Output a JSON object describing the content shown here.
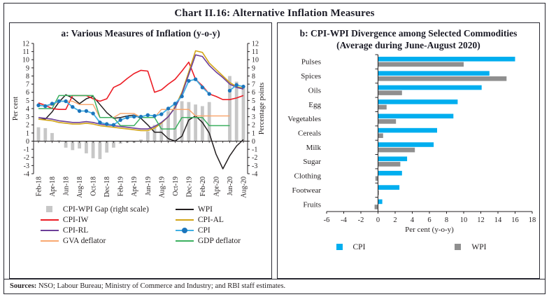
{
  "title": "Chart II.16: Alternative Inflation Measures",
  "sources_label": "Sources:",
  "sources_text": " NSO; Labour Bureau; Ministry of Commerce and Industry; and RBI staff estimates.",
  "colors": {
    "frame": "#26262e",
    "axis": "#231f20",
    "gap_bar": "#c7c7c7",
    "wpi_line": "#231f20",
    "cpi_iw": "#ec1c24",
    "cpi_al": "#d2a517",
    "cpi_rl": "#6d3f99",
    "cpi": "#41b0e4",
    "cpi_marker": "#1c75bc",
    "gva": "#f9a870",
    "gdp": "#3cb060",
    "cpi_b": "#00aeef",
    "wpi_b": "#8f8f8f"
  },
  "chart_data": [
    {
      "type": "line",
      "title": "a: Various Measures of Inflation (y-o-y)",
      "ylabel_left": "Per cent",
      "ylabel_right": "Percentage points",
      "ylim": [
        -4,
        12
      ],
      "ytick_step": 1,
      "x": [
        "Feb-18",
        "Mar-18",
        "Apr-18",
        "May-18",
        "Jun-18",
        "Jul-18",
        "Aug-18",
        "Sep-18",
        "Oct-18",
        "Nov-18",
        "Dec-18",
        "Jan-19",
        "Feb-19",
        "Mar-19",
        "Apr-19",
        "May-19",
        "Jun-19",
        "Jul-19",
        "Aug-19",
        "Sep-19",
        "Oct-19",
        "Nov-19",
        "Dec-19",
        "Jan-20",
        "Feb-20",
        "Mar-20",
        "Apr-20",
        "May-20",
        "Jun-20",
        "Jul-20",
        "Aug-20"
      ],
      "xtick_every": 2,
      "bar_series": {
        "name": "CPI-WPI Gap (right scale)",
        "axis": "right",
        "color": "#c7c7c7",
        "values": [
          1.7,
          1.6,
          1.0,
          0.1,
          -0.8,
          -1.1,
          -0.9,
          -1.5,
          -2.1,
          -2.2,
          -1.4,
          -0.8,
          -0.3,
          -0.2,
          -0.2,
          0.2,
          1.2,
          2.0,
          2.2,
          3.7,
          4.6,
          4.9,
          4.8,
          4.5,
          4.3,
          4.8,
          null,
          null,
          8.0,
          7.3,
          6.5
        ]
      },
      "series": [
        {
          "name": "WPI",
          "color": "#231f20",
          "width": 1.5,
          "values": [
            2.7,
            2.7,
            3.6,
            4.8,
            5.7,
            5.3,
            4.6,
            5.2,
            5.5,
            4.5,
            3.5,
            2.8,
            2.9,
            3.1,
            3.2,
            2.8,
            2.0,
            1.1,
            1.1,
            0.3,
            0.0,
            0.6,
            2.6,
            3.1,
            2.3,
            1.0,
            -1.6,
            -3.4,
            -1.8,
            -0.6,
            0.2
          ]
        },
        {
          "name": "CPI-IW",
          "color": "#ec1c24",
          "width": 1.6,
          "values": [
            4.7,
            4.4,
            4.0,
            3.9,
            3.9,
            5.6,
            5.6,
            5.6,
            5.2,
            4.9,
            5.2,
            6.6,
            7.0,
            7.7,
            8.3,
            8.7,
            8.6,
            6.0,
            6.3,
            7.0,
            7.6,
            8.6,
            9.7,
            7.6,
            6.8,
            5.8,
            5.5,
            5.1,
            5.1,
            5.3,
            5.6
          ]
        },
        {
          "name": "CPI-AL",
          "color": "#d2a517",
          "width": 1.6,
          "values": [
            2.7,
            2.6,
            2.5,
            2.3,
            2.2,
            2.1,
            2.1,
            2.2,
            2.1,
            1.9,
            1.8,
            1.7,
            1.6,
            1.5,
            1.4,
            1.3,
            1.3,
            1.6,
            2.2,
            3.0,
            4.2,
            6.0,
            8.5,
            11.1,
            10.9,
            9.6,
            8.8,
            8.0,
            7.2,
            6.7,
            6.5
          ]
        },
        {
          "name": "CPI-RL",
          "color": "#6d3f99",
          "width": 1.6,
          "values": [
            2.9,
            2.8,
            2.7,
            2.5,
            2.4,
            2.3,
            2.3,
            2.4,
            2.3,
            2.1,
            2.0,
            1.9,
            1.8,
            1.7,
            1.6,
            1.5,
            1.5,
            1.8,
            2.3,
            3.0,
            4.1,
            5.8,
            8.2,
            10.6,
            10.4,
            9.3,
            8.5,
            7.8,
            7.0,
            6.6,
            6.4
          ]
        },
        {
          "name": "GVA deflator",
          "color": "#f9a870",
          "width": 1.5,
          "values": [
            4.4,
            4.4,
            4.4,
            4.9,
            4.9,
            4.9,
            4.5,
            4.5,
            4.5,
            2.9,
            2.9,
            2.9,
            3.4,
            3.4,
            3.4,
            2.9,
            2.9,
            2.9,
            3.9,
            3.9,
            3.9,
            3.9,
            3.9,
            3.1,
            3.1,
            3.1,
            3.1,
            3.1,
            3.1,
            null,
            null
          ]
        },
        {
          "name": "GDP deflator",
          "color": "#3cb060",
          "width": 1.5,
          "values": [
            4.0,
            4.0,
            4.0,
            5.6,
            5.6,
            5.6,
            5.6,
            5.6,
            5.6,
            2.9,
            2.9,
            2.9,
            1.9,
            1.9,
            1.9,
            2.9,
            2.9,
            2.9,
            1.5,
            1.5,
            1.5,
            2.9,
            2.9,
            2.9,
            2.9,
            1.9,
            1.9,
            1.9,
            1.9,
            null,
            null
          ]
        },
        {
          "name": "CPI",
          "color": "#41b0e4",
          "width": 1.8,
          "marker": true,
          "marker_color": "#1c75bc",
          "values": [
            4.4,
            4.3,
            4.6,
            4.9,
            4.9,
            4.2,
            3.7,
            3.7,
            3.4,
            2.3,
            2.1,
            2.0,
            2.6,
            2.9,
            3.0,
            3.0,
            3.2,
            3.1,
            3.3,
            4.0,
            4.6,
            5.5,
            7.4,
            7.6,
            6.6,
            5.8,
            null,
            null,
            6.2,
            6.9,
            6.7
          ]
        }
      ],
      "legend": [
        {
          "label": "CPI-WPI Gap (right scale)",
          "swatch": "square",
          "color": "#c7c7c7"
        },
        {
          "label": "WPI",
          "swatch": "line",
          "color": "#231f20"
        },
        {
          "label": "CPI-IW",
          "swatch": "line",
          "color": "#ec1c24"
        },
        {
          "label": "CPI-AL",
          "swatch": "line",
          "color": "#d2a517"
        },
        {
          "label": "CPI-RL",
          "swatch": "line",
          "color": "#6d3f99"
        },
        {
          "label": "CPI",
          "swatch": "line-dot",
          "color": "#41b0e4",
          "dot": "#1c75bc"
        },
        {
          "label": "GVA deflator",
          "swatch": "line",
          "color": "#f9a870"
        },
        {
          "label": "GDP deflator",
          "swatch": "line",
          "color": "#3cb060"
        }
      ]
    },
    {
      "type": "bar",
      "orientation": "horizontal",
      "title_line1": "b: CPI-WPI Divergence among Selected Commodities",
      "title_line2": "(Average during June-August 2020)",
      "categories": [
        "Pulses",
        "Spices",
        "Oils",
        "Egg",
        "Vegetables",
        "Cereals",
        "Milk",
        "Sugar",
        "Clothing",
        "Footwear",
        "Fruits"
      ],
      "series": [
        {
          "name": "CPI",
          "color": "#00aeef",
          "values": [
            16.0,
            13.0,
            12.1,
            9.3,
            8.8,
            6.9,
            6.5,
            3.4,
            2.8,
            2.5,
            0.5
          ]
        },
        {
          "name": "WPI",
          "color": "#8f8f8f",
          "values": [
            10.0,
            15.0,
            2.8,
            1.0,
            2.1,
            0.6,
            4.3,
            2.6,
            -0.3,
            0.1,
            -0.4
          ]
        }
      ],
      "xlabel": "Per cent (y-o-y)",
      "xlim": [
        -6,
        18
      ],
      "xtick_step": 2
    }
  ]
}
